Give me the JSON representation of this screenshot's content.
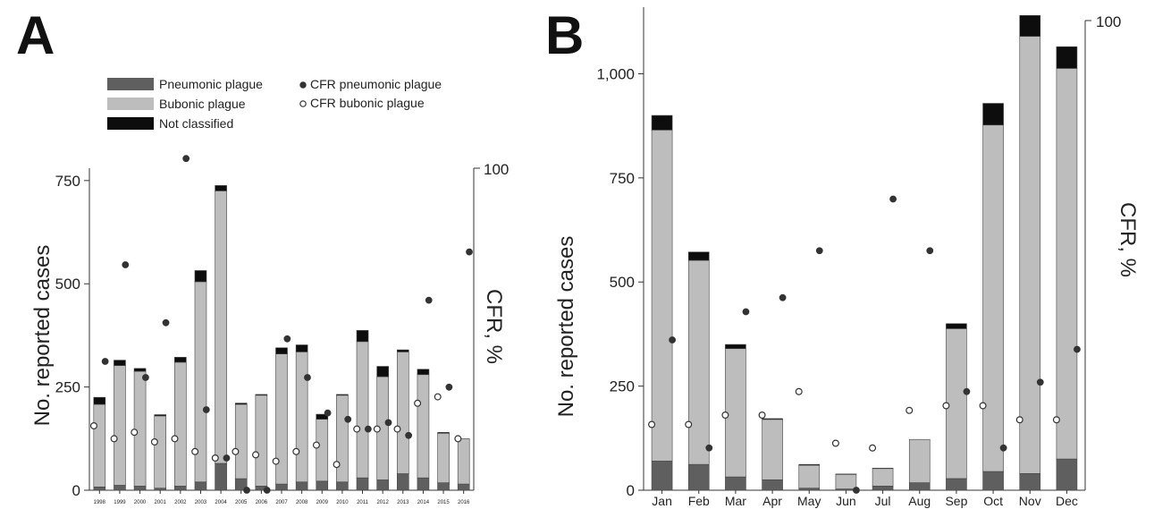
{
  "panels": [
    {
      "letter": "A",
      "ylabel": "No. reported cases",
      "y2label": "CFR, %",
      "y2max_label": "100",
      "legend": {
        "pneumonic": "Pneumonic plague",
        "bubonic": "Bubonic plague",
        "unclassified": "Not classified",
        "cfr_pneumonic": "CFR pneumonic plague",
        "cfr_bubonic": "CFR bubonic plague"
      }
    },
    {
      "letter": "B",
      "ylabel": "No. reported cases",
      "y2label": "CFR, %",
      "y2max_label": "100"
    }
  ],
  "colors": {
    "pneumonic": "#5f5f5f",
    "bubonic": "#bdbdbd",
    "unclassified": "#0d0d0d",
    "cfr_pneumonic": "#333333",
    "cfr_bubonic": "#ffffff"
  },
  "chart_data": [
    {
      "type": "bar",
      "stacked": true,
      "panel": "A",
      "categories": [
        "1998",
        "1999",
        "2000",
        "2001",
        "2002",
        "2003",
        "2004",
        "2005",
        "2006",
        "2007",
        "2008",
        "2009",
        "2010",
        "2011",
        "2012",
        "2013",
        "2014",
        "2015",
        "2016"
      ],
      "series": [
        {
          "name": "Pneumonic plague",
          "values": [
            8,
            12,
            10,
            5,
            10,
            20,
            65,
            28,
            10,
            15,
            20,
            22,
            20,
            30,
            25,
            40,
            30,
            18,
            15
          ]
        },
        {
          "name": "Bubonic plague",
          "values": [
            200,
            290,
            278,
            175,
            300,
            485,
            660,
            180,
            220,
            315,
            315,
            150,
            210,
            330,
            250,
            295,
            250,
            120,
            110
          ]
        },
        {
          "name": "Not classified",
          "values": [
            17,
            13,
            7,
            3,
            12,
            27,
            13,
            3,
            2,
            15,
            17,
            12,
            2,
            27,
            25,
            5,
            13,
            2,
            0
          ]
        }
      ],
      "cfr": [
        {
          "name": "CFR pneumonic plague",
          "values": [
            40,
            70,
            35,
            52,
            103,
            25,
            10,
            0,
            0,
            47,
            35,
            24,
            22,
            19,
            21,
            17,
            59,
            32,
            74
          ]
        },
        {
          "name": "CFR bubonic plague",
          "values": [
            20,
            16,
            18,
            15,
            16,
            12,
            10,
            12,
            11,
            9,
            12,
            14,
            8,
            19,
            19,
            19,
            27,
            29,
            16
          ]
        }
      ],
      "yticks": [
        0,
        250,
        500,
        750
      ],
      "ylim": [
        0,
        780
      ],
      "y2lim": [
        0,
        100
      ],
      "legend_position": "top-left"
    },
    {
      "type": "bar",
      "stacked": true,
      "panel": "B",
      "categories": [
        "Jan",
        "Feb",
        "Mar",
        "Apr",
        "May",
        "Jun",
        "Jul",
        "Aug",
        "Sep",
        "Oct",
        "Nov",
        "Dec"
      ],
      "series": [
        {
          "name": "Pneumonic plague",
          "values": [
            70,
            62,
            32,
            25,
            5,
            3,
            10,
            18,
            28,
            45,
            40,
            75
          ]
        },
        {
          "name": "Bubonic plague",
          "values": [
            795,
            490,
            308,
            145,
            55,
            35,
            42,
            104,
            360,
            832,
            1050,
            938
          ]
        },
        {
          "name": "Not classified",
          "values": [
            35,
            20,
            10,
            2,
            2,
            1,
            1,
            0,
            12,
            52,
            50,
            52
          ]
        }
      ],
      "cfr": [
        {
          "name": "CFR pneumonic plague",
          "values": [
            32,
            9,
            38,
            41,
            51,
            0,
            62,
            51,
            21,
            9,
            23,
            30
          ]
        },
        {
          "name": "CFR bubonic plague",
          "values": [
            14,
            14,
            16,
            16,
            21,
            10,
            9,
            17,
            18,
            18,
            15,
            15
          ]
        }
      ],
      "yticks": [
        0,
        250,
        500,
        750,
        1000
      ],
      "ytick_labels": [
        "0",
        "250",
        "500",
        "750",
        "1,000"
      ],
      "ylim": [
        0,
        1160
      ],
      "y2lim": [
        0,
        100
      ]
    }
  ]
}
